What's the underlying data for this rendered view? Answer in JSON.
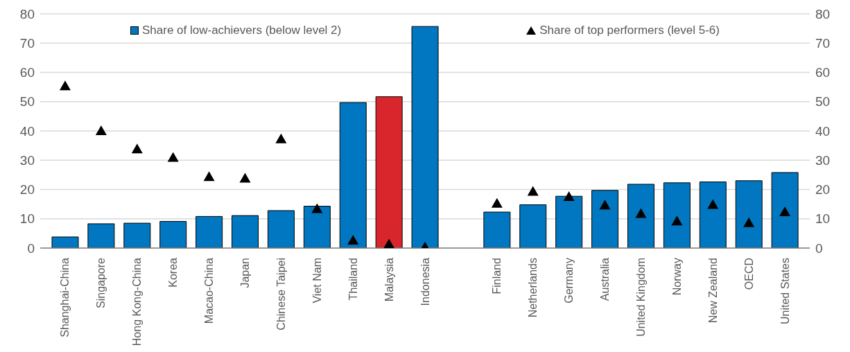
{
  "chart_data": {
    "type": "bar",
    "categories": [
      "Shanghai-China",
      "Singapore",
      "Hong Kong-China",
      "Korea",
      "Macao-China",
      "Japan",
      "Chinese Taipei",
      "Viet Nam",
      "Thailand",
      "Malaysia",
      "Indonesia",
      null,
      "Finland",
      "Netherlands",
      "Germany",
      "Australia",
      "United Kingdom",
      "Norway",
      "New Zealand",
      "OECD",
      "United States"
    ],
    "series": [
      {
        "name": "Share of low-achievers (below level 2)",
        "color": "#0077c0",
        "colors": [
          "#0077c0",
          "#0077c0",
          "#0077c0",
          "#0077c0",
          "#0077c0",
          "#0077c0",
          "#0077c0",
          "#0077c0",
          "#0077c0",
          "#d9262c",
          "#0077c0",
          null,
          "#0077c0",
          "#0077c0",
          "#0077c0",
          "#0077c0",
          "#0077c0",
          "#0077c0",
          "#0077c0",
          "#0077c0",
          "#0077c0"
        ],
        "values": [
          3.8,
          8.3,
          8.5,
          9.1,
          10.8,
          11.1,
          12.8,
          14.3,
          49.7,
          51.7,
          75.7,
          null,
          12.3,
          14.8,
          17.7,
          19.7,
          21.8,
          22.3,
          22.6,
          23.0,
          25.8
        ]
      },
      {
        "name": "Share of top performers (level 5-6)",
        "type": "scatter",
        "color": "#000000",
        "values": [
          55.3,
          40.0,
          33.8,
          30.9,
          24.3,
          23.8,
          37.2,
          13.4,
          2.6,
          1.3,
          0.3,
          null,
          15.2,
          19.3,
          17.5,
          14.6,
          11.7,
          9.2,
          14.8,
          8.6,
          12.3
        ]
      }
    ],
    "ylim": [
      0,
      80
    ],
    "yticks": [
      0,
      10,
      20,
      30,
      40,
      50,
      60,
      70,
      80
    ],
    "y2lim": [
      0,
      80
    ],
    "y2ticks": [
      0,
      10,
      20,
      30,
      40,
      50,
      60,
      70,
      80
    ],
    "grid": "y",
    "legend": "top",
    "marker": "triangle"
  }
}
